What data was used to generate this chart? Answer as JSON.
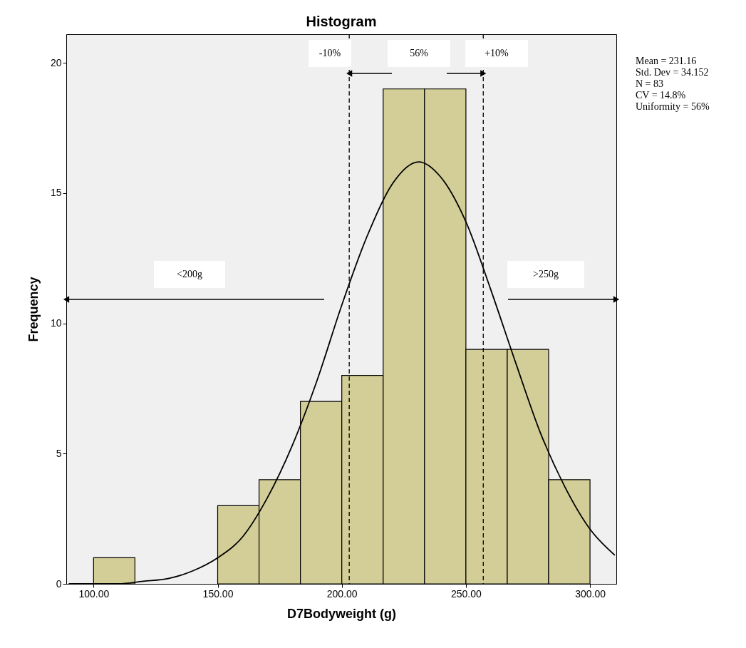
{
  "chart_data": {
    "type": "histogram",
    "title": "Histogram",
    "xlabel": "D7Bodyweight  (g)",
    "ylabel": "Frequency",
    "bins": [
      100,
      116.67,
      133.33,
      150,
      166.67,
      183.33,
      200,
      216.67,
      233.33,
      250,
      266.67,
      283.33,
      300
    ],
    "values": [
      1,
      0,
      0,
      3,
      4,
      7,
      8,
      19,
      19,
      9,
      9,
      4
    ],
    "color": "#d3ce97",
    "series": [
      {
        "type": "line",
        "color": "#000000",
        "x": [
          90,
          100,
          110,
          120,
          130,
          140,
          150,
          160,
          170,
          180,
          190,
          200,
          210,
          220,
          231,
          240,
          250,
          260,
          270,
          280,
          290,
          300,
          310
        ],
        "values": [
          0,
          0,
          0,
          0.1,
          0.2,
          0.5,
          1.0,
          1.8,
          3.3,
          5.3,
          7.8,
          10.7,
          13.3,
          15.3,
          16.2,
          15.6,
          13.9,
          11.3,
          8.5,
          5.8,
          3.7,
          2.1,
          1.1
        ]
      }
    ],
    "xlim": [
      89,
      310.6
    ],
    "ylim": [
      0,
      21.1
    ],
    "xticks": [
      {
        "value": 100,
        "label": "100.00"
      },
      {
        "value": 150,
        "label": "150.00"
      },
      {
        "value": 200,
        "label": "200.00"
      },
      {
        "value": 250,
        "label": "250.00"
      },
      {
        "value": 300,
        "label": "300.00"
      }
    ],
    "yticks": [
      0,
      5,
      10,
      15,
      20
    ],
    "ref_lines": [
      {
        "axis": "x",
        "value": 203,
        "line_style": "dashed"
      },
      {
        "axis": "x",
        "value": 257,
        "line_style": "dashed"
      }
    ],
    "annotations": [
      "-10%",
      "56%",
      "+10%",
      "<200g",
      ">250g",
      "Mean = 231.16",
      "Std. Dev = 34.152",
      "N = 83",
      "CV = 14.8%",
      "Uniformity = 56%"
    ],
    "grid": false
  }
}
